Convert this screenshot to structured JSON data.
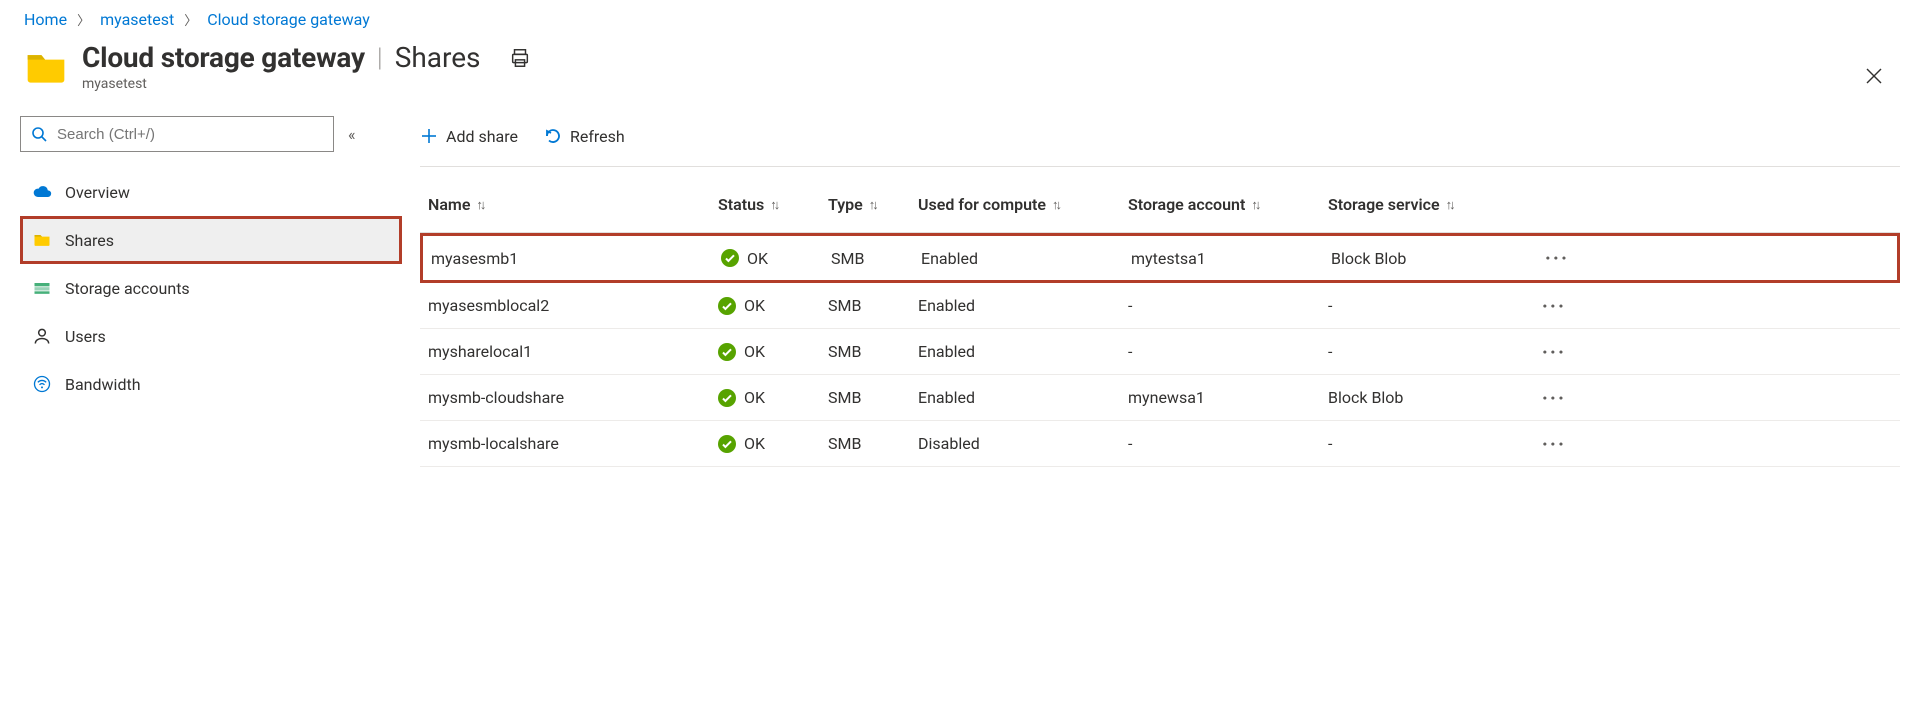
{
  "colors": {
    "link": "#0078d4",
    "text": "#323130",
    "muted": "#605e5c",
    "border": "#e1dfdd",
    "highlight_border": "#b23d29",
    "ok_badge": "#57a300",
    "sidebar_selected_bg": "#efefef",
    "folder_fill": "#ffcb00",
    "folder_tab": "#dcb300"
  },
  "breadcrumb": {
    "home": "Home",
    "resource": "myasetest",
    "section": "Cloud storage gateway"
  },
  "header": {
    "title": "Cloud storage gateway",
    "subtitle_section": "Shares",
    "resource_name": "myasetest"
  },
  "search": {
    "placeholder": "Search (Ctrl+/)"
  },
  "sidebar": {
    "items": [
      {
        "id": "overview",
        "label": "Overview",
        "icon": "cloud-icon"
      },
      {
        "id": "shares",
        "label": "Shares",
        "icon": "folder-icon",
        "selected": true
      },
      {
        "id": "storage-accounts",
        "label": "Storage accounts",
        "icon": "storage-icon"
      },
      {
        "id": "users",
        "label": "Users",
        "icon": "user-icon"
      },
      {
        "id": "bandwidth",
        "label": "Bandwidth",
        "icon": "bandwidth-icon"
      }
    ]
  },
  "toolbar": {
    "add_label": "Add share",
    "refresh_label": "Refresh"
  },
  "table": {
    "columns": {
      "name": "Name",
      "status": "Status",
      "type": "Type",
      "compute": "Used for compute",
      "account": "Storage account",
      "service": "Storage service"
    },
    "rows": [
      {
        "name": "myasesmb1",
        "status": "OK",
        "type": "SMB",
        "compute": "Enabled",
        "account": "mytestsa1",
        "service": "Block Blob",
        "highlight": true
      },
      {
        "name": "myasesmblocal2",
        "status": "OK",
        "type": "SMB",
        "compute": "Enabled",
        "account": "-",
        "service": "-"
      },
      {
        "name": "mysharelocal1",
        "status": "OK",
        "type": "SMB",
        "compute": "Enabled",
        "account": "-",
        "service": "-"
      },
      {
        "name": "mysmb-cloudshare",
        "status": "OK",
        "type": "SMB",
        "compute": "Enabled",
        "account": "mynewsa1",
        "service": "Block Blob"
      },
      {
        "name": "mysmb-localshare",
        "status": "OK",
        "type": "SMB",
        "compute": "Disabled",
        "account": "-",
        "service": "-"
      }
    ]
  }
}
